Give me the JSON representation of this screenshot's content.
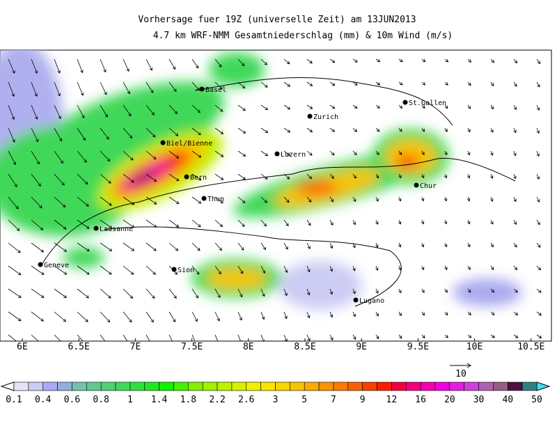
{
  "header": {
    "title_line1": "Vorhersage fuer 19Z (universelle Zeit) am 13JUN2013",
    "title_line2": "4.7 km WRF-NMM Gesamtniederschlag (mm) & 10m Wind (m/s)"
  },
  "map": {
    "cities": [
      "Basel",
      "Zurich",
      "St.Gallen",
      "Biel/Bienne",
      "Luzern",
      "Bern",
      "Chur",
      "Thun",
      "Lausanne",
      "Geneve",
      "Sion",
      "Lugano"
    ],
    "lon_ticks": [
      "6E",
      "6.5E",
      "7E",
      "7.5E",
      "8E",
      "8.5E",
      "9E",
      "9.5E",
      "10E",
      "10.5E"
    ]
  },
  "wind_scale": {
    "label": "10"
  },
  "colorbar": {
    "labels": [
      0.1,
      0.4,
      0.6,
      0.8,
      1,
      1.4,
      1.8,
      2.2,
      2.6,
      3,
      5,
      7,
      9,
      12,
      16,
      20,
      30,
      40,
      50
    ],
    "colors": [
      "#e4e4f8",
      "#ccccf4",
      "#aaaaf0",
      "#92aedc",
      "#74c2aa",
      "#62c892",
      "#52d072",
      "#40d858",
      "#30e040",
      "#20e820",
      "#10f000",
      "#44f000",
      "#80f000",
      "#a0f000",
      "#c0f000",
      "#d8f000",
      "#f0f000",
      "#f8e400",
      "#f8d400",
      "#f8c400",
      "#f8ac00",
      "#f89400",
      "#f87c00",
      "#f86000",
      "#f84000",
      "#f82000",
      "#f00040",
      "#f00080",
      "#f000b0",
      "#f000e0",
      "#e020e0",
      "#d040d8",
      "#b060b0",
      "#906080",
      "#501040",
      "#308080"
    ],
    "under_color": "#ffffff",
    "over_color": "#40e0f0"
  }
}
